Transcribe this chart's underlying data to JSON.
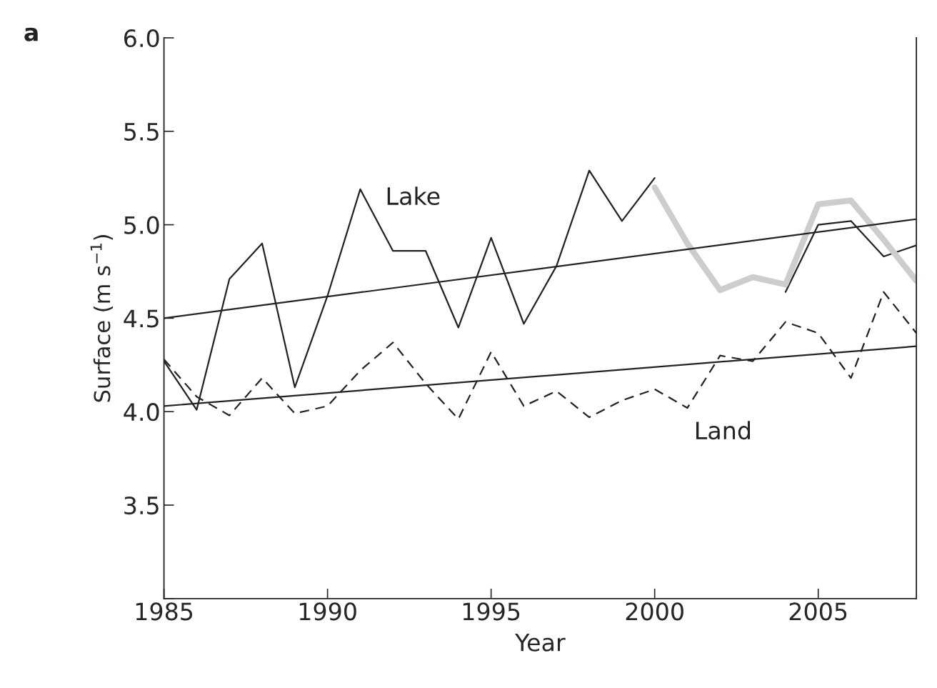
{
  "chart_data": {
    "type": "line",
    "xlabel": "Year",
    "ylabel": "Surface (m s$^{−1}$)",
    "xlim": [
      1985,
      2008
    ],
    "xticks": [
      1985,
      1990,
      1995,
      2000,
      2005
    ],
    "ylim": [
      3.0,
      6.0
    ],
    "yticks": [
      {
        "value": 3.0,
        "label": null
      },
      3.5,
      {
        "value": 4,
        "label": "4.0"
      },
      4.5,
      {
        "value": 5,
        "label": "5.0"
      },
      5.5,
      {
        "value": 6,
        "label": "6.0"
      }
    ],
    "x": [
      1985,
      1986,
      1987,
      1988,
      1989,
      1990,
      1991,
      1992,
      1993,
      1994,
      1995,
      1996,
      1997,
      1998,
      1999,
      2000,
      2001,
      2002,
      2003,
      2004,
      2005,
      2006,
      2007,
      2008
    ],
    "series": [
      {
        "color": "#222222",
        "line_style": "solid",
        "values": [
          4.27,
          4.01,
          4.71,
          4.9,
          4.13,
          4.62,
          5.19,
          4.86,
          4.86,
          4.45,
          4.93,
          4.47,
          4.78,
          5.29,
          5.02,
          5.25,
          null,
          null,
          null,
          4.64,
          5.0,
          5.02,
          4.83,
          4.89
        ]
      },
      {
        "color": "#222222",
        "line_style": "dashed",
        "values": [
          4.28,
          4.08,
          3.98,
          4.18,
          3.99,
          4.03,
          4.22,
          4.37,
          4.15,
          3.96,
          4.32,
          4.03,
          4.11,
          3.97,
          4.06,
          4.12,
          4.02,
          4.3,
          4.27,
          4.48,
          4.42,
          4.18,
          4.64,
          4.42
        ]
      },
      {
        "color": "#cbcdce",
        "line_style": "solid",
        "x": [
          2000,
          2001,
          2002,
          2003,
          2004,
          2005,
          2006,
          2007,
          2008
        ],
        "values": [
          5.2,
          4.9,
          4.65,
          4.72,
          4.68,
          5.11,
          5.13,
          4.92,
          4.7
        ]
      },
      {
        "color": "#222222",
        "line_style": "solid",
        "x": [
          1985,
          2008
        ],
        "values": [
          4.5,
          5.03
        ]
      },
      {
        "color": "#222222",
        "line_style": "solid",
        "x": [
          1985,
          2008
        ],
        "values": [
          4.03,
          4.35
        ]
      }
    ],
    "annotations": [
      "a",
      "Lake",
      "Land"
    ],
    "grid": false,
    "legend": false,
    "marker": "none"
  }
}
